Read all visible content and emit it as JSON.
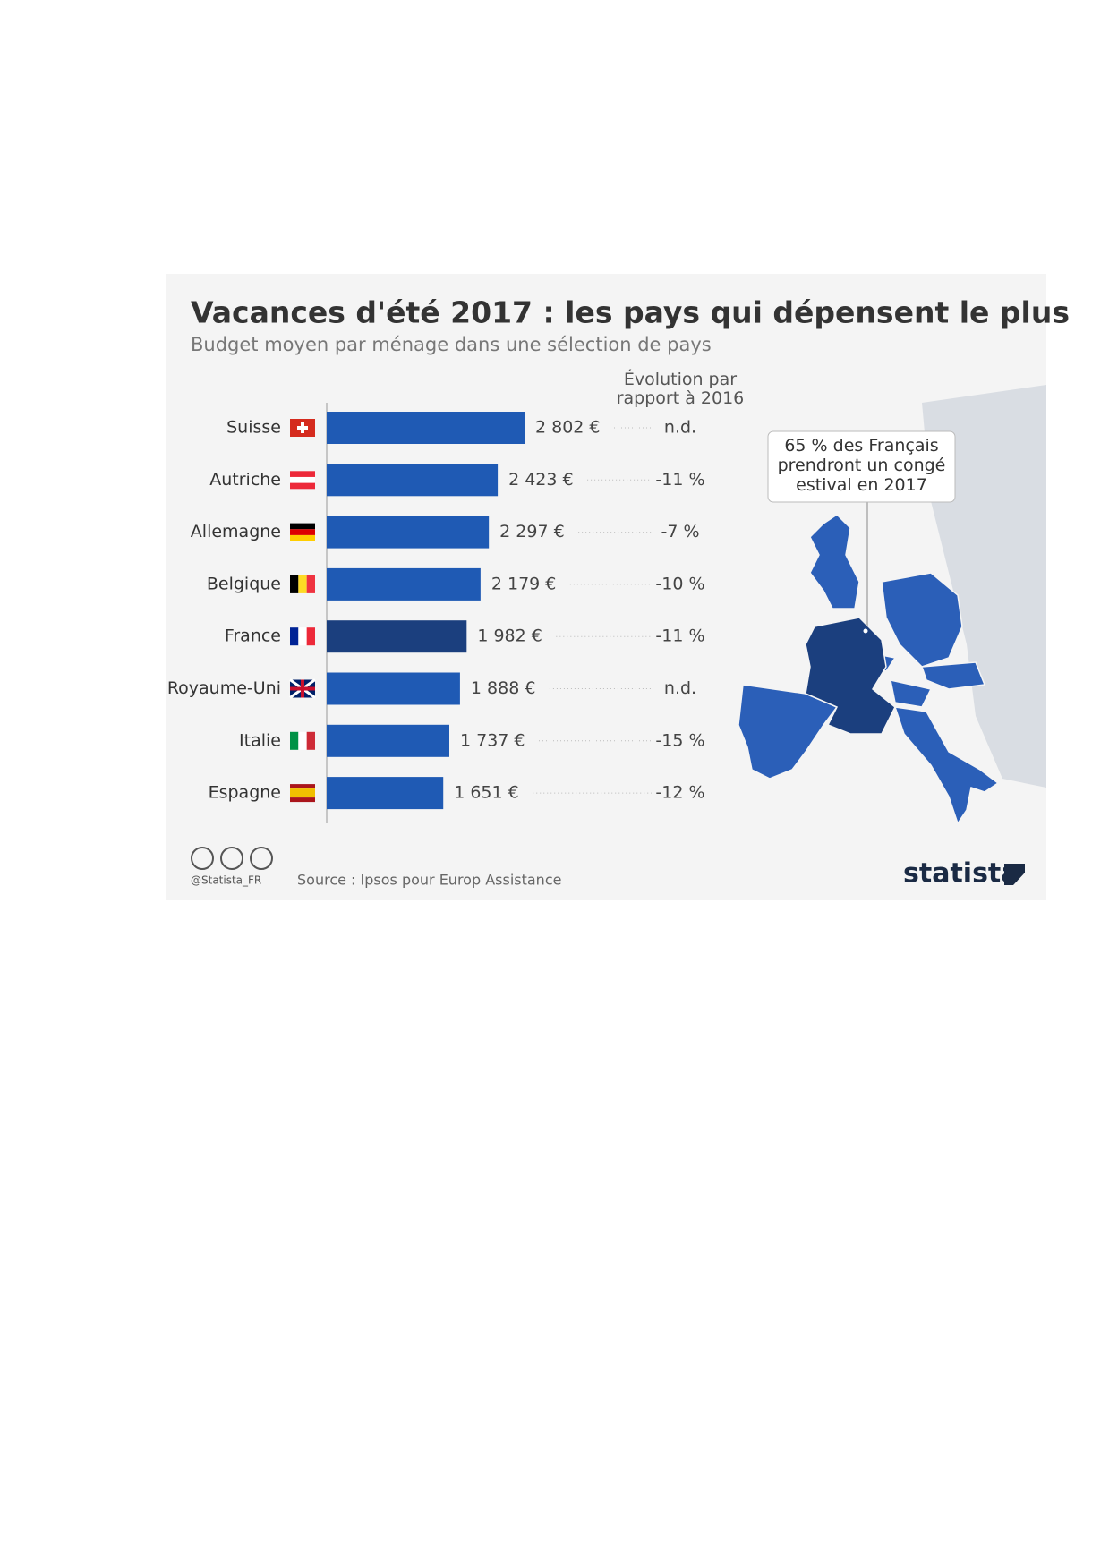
{
  "chart_data": {
    "type": "bar",
    "title": "Vacances d'été 2017 : les pays qui dépensent le plus",
    "subtitle": "Budget moyen par ménage dans une sélection de pays",
    "categories": [
      "Suisse",
      "Autriche",
      "Allemagne",
      "Belgique",
      "France",
      "Royaume-Uni",
      "Italie",
      "Espagne"
    ],
    "values": [
      2802,
      2423,
      2297,
      2179,
      1982,
      1888,
      1737,
      1651
    ],
    "value_labels": [
      "2 802 €",
      "2 423 €",
      "2 297 €",
      "2 179 €",
      "1 982 €",
      "1 888 €",
      "1 737 €",
      "1 651 €"
    ],
    "colors": [
      "#1f5ab4",
      "#1f5ab4",
      "#1f5ab4",
      "#1f5ab4",
      "#1b3f7e",
      "#1f5ab4",
      "#1f5ab4",
      "#1f5ab4"
    ],
    "evolution": {
      "title": "Évolution par rapport à 2016",
      "values": [
        null,
        -11,
        -7,
        -10,
        -11,
        null,
        -15,
        -12
      ],
      "value_labels": [
        "n.d.",
        "-11 %",
        "-7 %",
        "-10 %",
        "-11 %",
        "n.d.",
        "-15 %",
        "-12 %"
      ]
    },
    "annotation": "65 % des Français prendront un congé estival en 2017",
    "credit": "@Statista_FR",
    "source": "Source : Ipsos pour Europ Assistance",
    "brand": "statista"
  }
}
